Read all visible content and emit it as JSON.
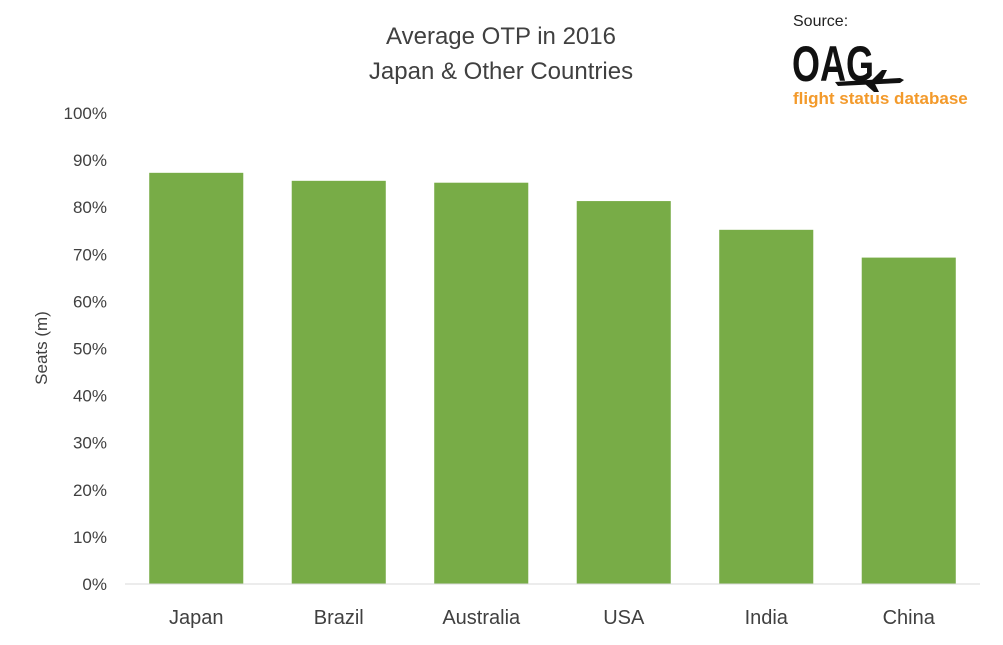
{
  "chart_data": {
    "type": "bar",
    "title": [
      "Average OTP in 2016",
      "Japan & Other Countries"
    ],
    "ylabel": "Seats (m)",
    "xlabel": "",
    "categories": [
      "Japan",
      "Brazil",
      "Australia",
      "USA",
      "India",
      "China"
    ],
    "values": [
      87.3,
      85.6,
      85.2,
      81.3,
      75.2,
      69.3
    ],
    "ylim": [
      0,
      100
    ],
    "yticks": [
      "0%",
      "10%",
      "20%",
      "30%",
      "40%",
      "50%",
      "60%",
      "70%",
      "80%",
      "90%",
      "100%"
    ],
    "bar_color": "#78AC47",
    "grid": false
  },
  "source": {
    "label": "Source:",
    "logo": "OAG",
    "subtitle": "flight status database",
    "subtitle_color": "#F39A2B",
    "icon": "airplane-icon"
  }
}
